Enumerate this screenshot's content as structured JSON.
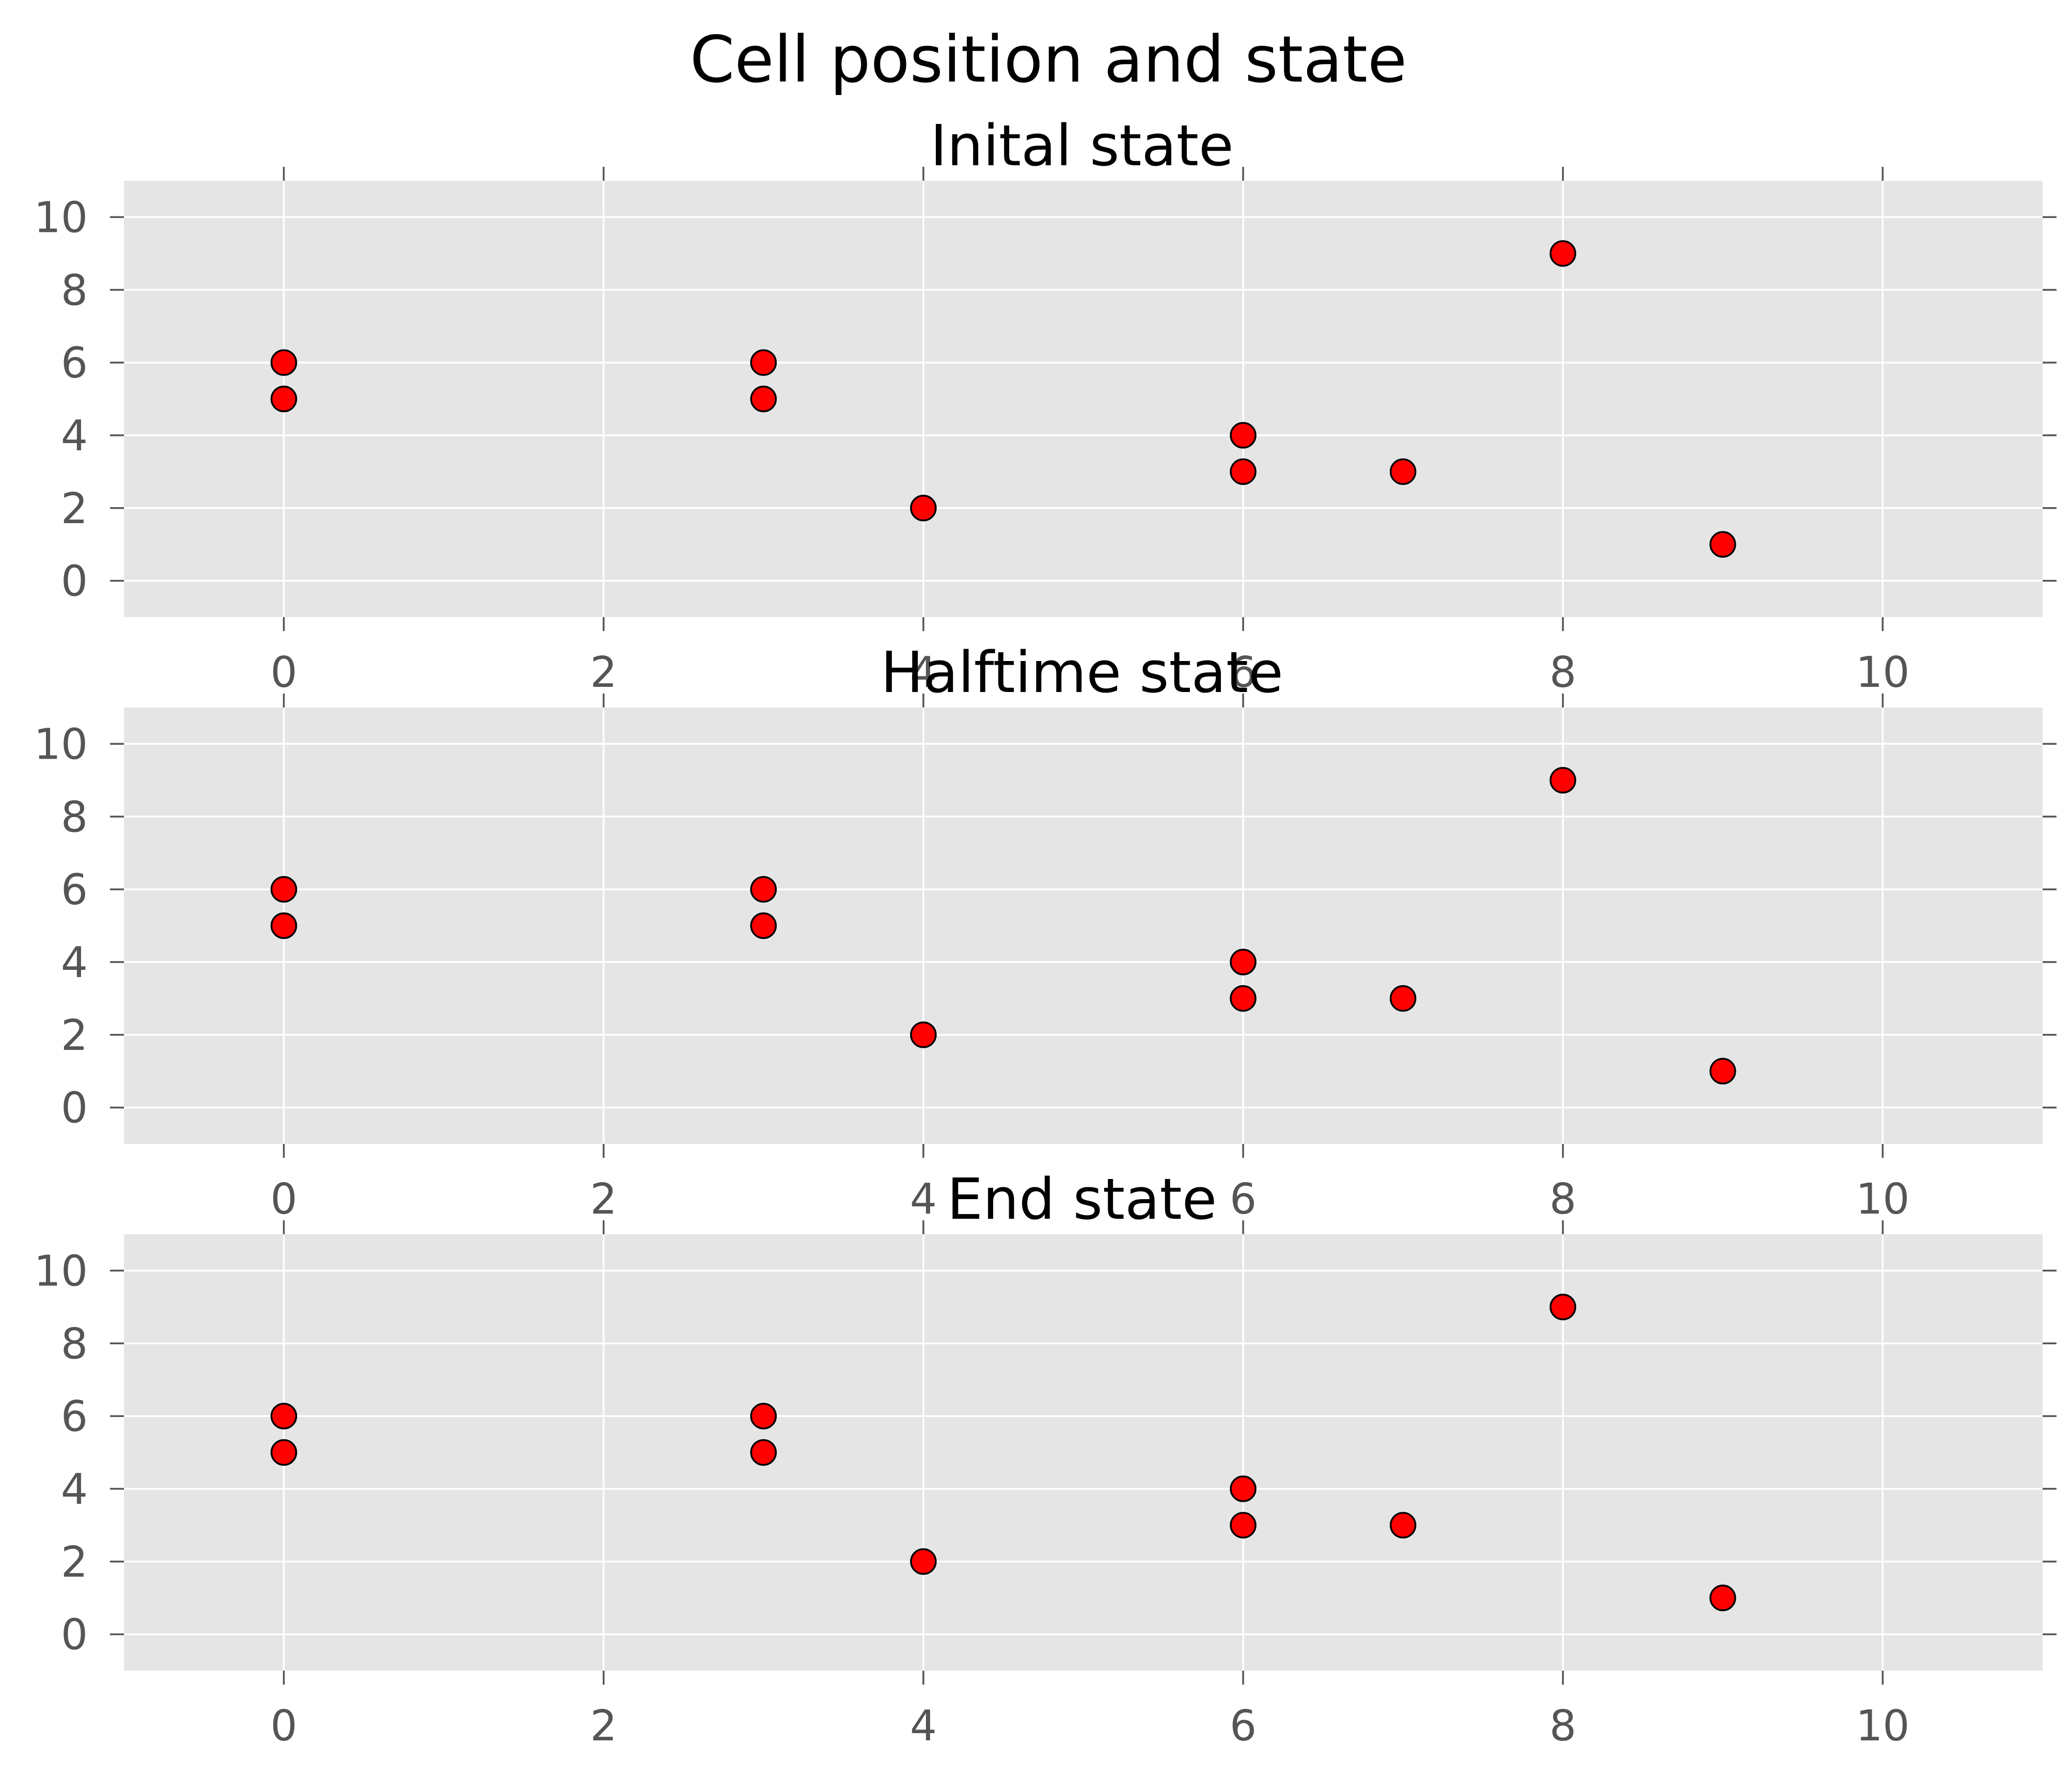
{
  "chart_data": {
    "type": "scatter",
    "title": "Cell position and state",
    "marker_color": "#ff0000",
    "marker_edge_color": "#000000",
    "panel_background": "#e5e5e5",
    "grid": true,
    "xlim": [
      -1,
      11
    ],
    "ylim": [
      -1,
      11
    ],
    "x_ticks": [
      0,
      2,
      4,
      6,
      8,
      10
    ],
    "y_ticks": [
      0,
      2,
      4,
      6,
      8,
      10
    ],
    "x_tick_labels": [
      "0",
      "2",
      "4",
      "6",
      "8",
      "10"
    ],
    "y_tick_labels": [
      "0",
      "2",
      "4",
      "6",
      "8",
      "10"
    ],
    "panels": [
      {
        "title": "Inital state",
        "points": [
          {
            "x": 0,
            "y": 6
          },
          {
            "x": 0,
            "y": 5
          },
          {
            "x": 3,
            "y": 6
          },
          {
            "x": 3,
            "y": 5
          },
          {
            "x": 4,
            "y": 2
          },
          {
            "x": 6,
            "y": 4
          },
          {
            "x": 6,
            "y": 3
          },
          {
            "x": 7,
            "y": 3
          },
          {
            "x": 8,
            "y": 9
          },
          {
            "x": 9,
            "y": 1
          }
        ]
      },
      {
        "title": "Halftime state",
        "points": [
          {
            "x": 0,
            "y": 6
          },
          {
            "x": 0,
            "y": 5
          },
          {
            "x": 3,
            "y": 6
          },
          {
            "x": 3,
            "y": 5
          },
          {
            "x": 4,
            "y": 2
          },
          {
            "x": 6,
            "y": 4
          },
          {
            "x": 6,
            "y": 3
          },
          {
            "x": 7,
            "y": 3
          },
          {
            "x": 8,
            "y": 9
          },
          {
            "x": 9,
            "y": 1
          }
        ]
      },
      {
        "title": "End state",
        "points": [
          {
            "x": 0,
            "y": 6
          },
          {
            "x": 0,
            "y": 5
          },
          {
            "x": 3,
            "y": 6
          },
          {
            "x": 3,
            "y": 5
          },
          {
            "x": 4,
            "y": 2
          },
          {
            "x": 6,
            "y": 4
          },
          {
            "x": 6,
            "y": 3
          },
          {
            "x": 7,
            "y": 3
          },
          {
            "x": 8,
            "y": 9
          },
          {
            "x": 9,
            "y": 1
          }
        ]
      }
    ]
  }
}
